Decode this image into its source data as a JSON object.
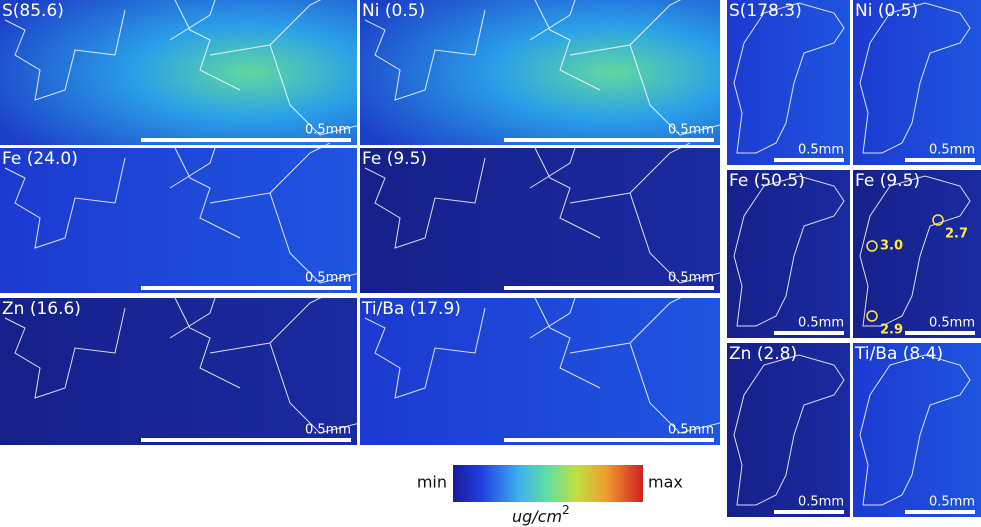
{
  "panels": [
    {
      "label": "S(85.6)",
      "scale": "0.5mm"
    },
    {
      "label": "Ni (0.5)",
      "scale": "0.5mm"
    },
    {
      "label": "Fe (24.0)",
      "scale": "0.5mm"
    },
    {
      "label": "Fe (9.5)",
      "scale": "0.5mm"
    },
    {
      "label": "Zn (16.6)",
      "scale": "0.5mm"
    },
    {
      "label": "Ti/Ba (17.9)",
      "scale": "0.5mm"
    },
    {
      "label": "S(178.3)",
      "scale": "0.5mm"
    },
    {
      "label": "Ni (0.5)",
      "scale": "0.5mm"
    },
    {
      "label": "Fe (50.5)",
      "scale": "0.5mm"
    },
    {
      "label": "Fe (9.5)",
      "scale": "0.5mm"
    },
    {
      "label": "Zn (2.8)",
      "scale": "0.5mm"
    },
    {
      "label": "Ti/Ba (8.4)",
      "scale": "0.5mm"
    }
  ],
  "annotations": [
    "3.0",
    "2.7",
    "2.9"
  ],
  "colorbar": {
    "min": "min",
    "max": "max",
    "unit": "ug/cm",
    "unit_power": "2"
  }
}
